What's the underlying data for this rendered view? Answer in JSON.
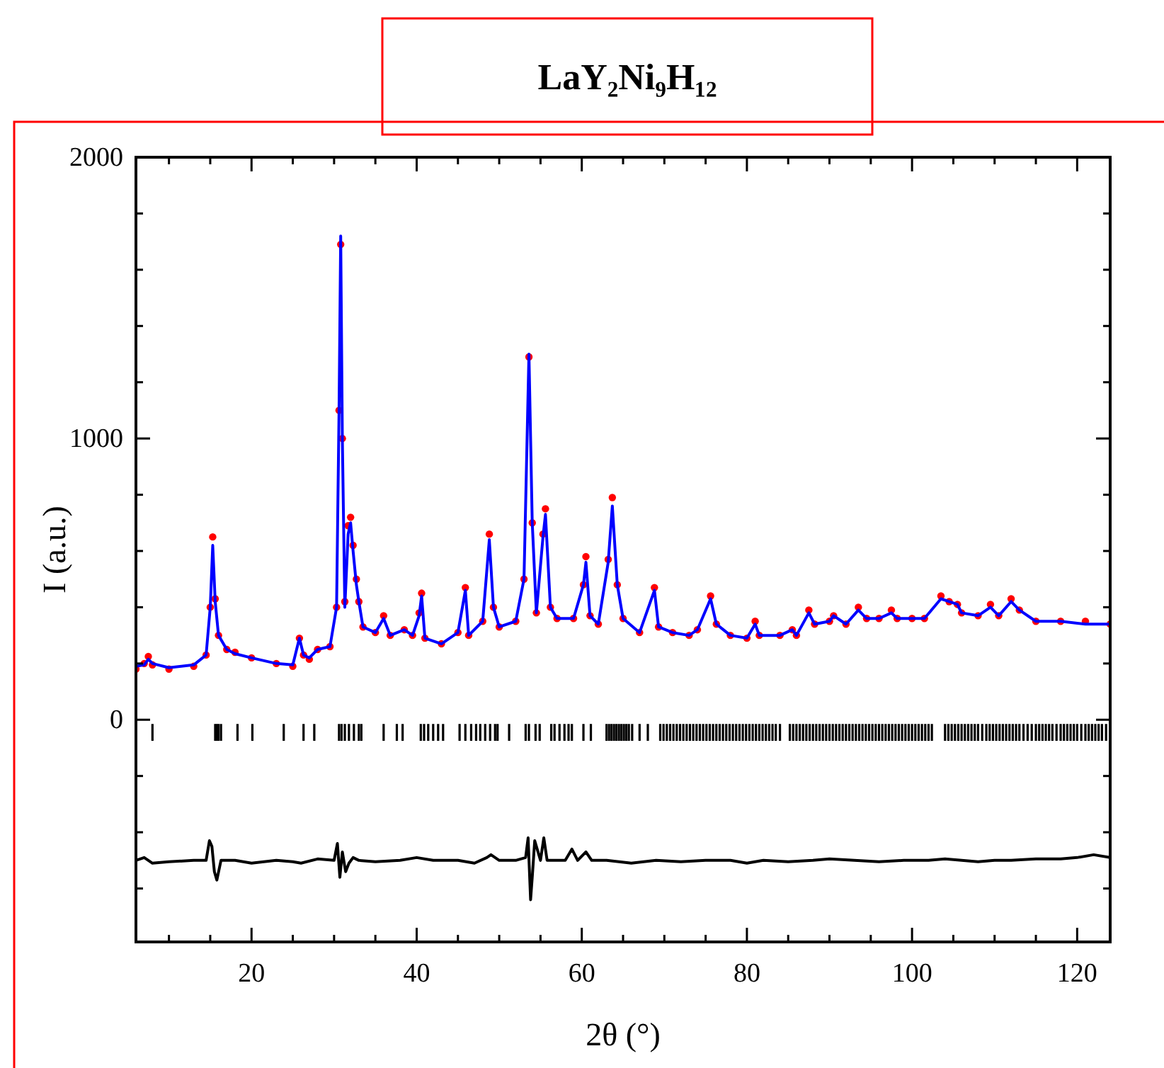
{
  "chart_data": {
    "type": "line",
    "title": "LaY₂Ni₉H₁₂",
    "xlabel": "2θ (°)",
    "ylabel": "I (a.u.)",
    "xlim": [
      6,
      124
    ],
    "ylim": [
      -790,
      2000
    ],
    "xticks": [
      {
        "value": 10,
        "label": null
      },
      {
        "value": 15,
        "label": null
      },
      20,
      {
        "value": 25,
        "label": null
      },
      {
        "value": 30,
        "label": null
      },
      {
        "value": 35,
        "label": null
      },
      40,
      {
        "value": 45,
        "label": null
      },
      {
        "value": 50,
        "label": null
      },
      {
        "value": 55,
        "label": null
      },
      60,
      {
        "value": 65,
        "label": null
      },
      {
        "value": 70,
        "label": null
      },
      {
        "value": 75,
        "label": null
      },
      80,
      {
        "value": 85,
        "label": null
      },
      {
        "value": 90,
        "label": null
      },
      {
        "value": 95,
        "label": null
      },
      100,
      {
        "value": 105,
        "label": null
      },
      {
        "value": 110,
        "label": null
      },
      {
        "value": 115,
        "label": null
      },
      120
    ],
    "yticks": [
      {
        "value": -600,
        "label": null
      },
      {
        "value": -400,
        "label": null
      },
      {
        "value": -200,
        "label": null
      },
      0,
      {
        "value": 200,
        "label": null
      },
      {
        "value": 400,
        "label": null
      },
      {
        "value": 600,
        "label": null
      },
      {
        "value": 800,
        "label": null
      },
      1000,
      {
        "value": 1200,
        "label": null
      },
      {
        "value": 1400,
        "label": null
      },
      {
        "value": 1600,
        "label": null
      },
      {
        "value": 1800,
        "label": null
      },
      2000
    ],
    "grid": false,
    "series": [
      {
        "type": "scatter",
        "marker": "circle",
        "color": "#ff0000",
        "x": [
          6,
          7,
          7.5,
          8,
          10,
          13,
          14.5,
          15,
          15.3,
          15.6,
          16,
          17,
          18,
          20,
          23,
          25,
          25.8,
          26.3,
          27,
          28,
          29.5,
          30.3,
          30.6,
          30.8,
          31,
          31.3,
          31.7,
          32,
          32.3,
          32.7,
          33,
          33.5,
          35,
          36,
          36.8,
          38.5,
          39.5,
          40.3,
          40.6,
          41,
          43,
          45,
          45.9,
          46.3,
          48,
          48.8,
          49.3,
          50,
          52,
          53,
          53.6,
          54,
          54.5,
          55.3,
          55.6,
          56.2,
          57,
          59,
          60.2,
          60.5,
          61,
          62,
          63.2,
          63.7,
          64.3,
          65,
          67,
          68.8,
          69.3,
          71,
          73,
          74,
          75.6,
          76.3,
          78,
          80,
          81,
          81.5,
          84,
          85.5,
          86,
          87.5,
          88.2,
          90,
          90.5,
          92,
          93.5,
          94.5,
          96,
          97.5,
          98.2,
          100,
          101.5,
          103.5,
          104.5,
          105.5,
          106,
          108,
          109.5,
          110.5,
          112,
          113,
          115,
          118,
          121,
          124
        ],
        "values": [
          180,
          200,
          225,
          195,
          180,
          190,
          230,
          400,
          650,
          430,
          300,
          250,
          240,
          220,
          200,
          190,
          290,
          230,
          215,
          250,
          260,
          400,
          1100,
          1690,
          1000,
          420,
          690,
          720,
          620,
          500,
          420,
          330,
          310,
          370,
          300,
          320,
          300,
          380,
          450,
          290,
          270,
          310,
          470,
          300,
          350,
          660,
          400,
          330,
          350,
          500,
          1290,
          700,
          380,
          660,
          750,
          400,
          360,
          360,
          480,
          580,
          370,
          340,
          570,
          790,
          480,
          360,
          310,
          470,
          330,
          310,
          300,
          320,
          440,
          340,
          300,
          290,
          350,
          300,
          300,
          320,
          300,
          390,
          340,
          350,
          370,
          340,
          400,
          360,
          360,
          390,
          360,
          360,
          360,
          440,
          420,
          410,
          380,
          370,
          410,
          370,
          430,
          390,
          350,
          350,
          350,
          340
        ]
      },
      {
        "marker": "none",
        "color": "#0000ff",
        "x": [
          6,
          7,
          7.5,
          8,
          10,
          13,
          14.5,
          15,
          15.3,
          15.6,
          16,
          17,
          18,
          20,
          23,
          25,
          25.8,
          26.3,
          27,
          28,
          29.5,
          30.3,
          30.6,
          30.8,
          31,
          31.3,
          31.7,
          32,
          32.3,
          32.7,
          33,
          33.5,
          35,
          36,
          36.8,
          38.5,
          39.5,
          40.3,
          40.6,
          41,
          43,
          45,
          45.9,
          46.3,
          48,
          48.8,
          49.3,
          50,
          52,
          53,
          53.6,
          54,
          54.5,
          55.3,
          55.6,
          56.2,
          57,
          59,
          60.2,
          60.5,
          61,
          62,
          63.2,
          63.7,
          64.3,
          65,
          67,
          68.8,
          69.3,
          71,
          73,
          74,
          75.6,
          76.3,
          78,
          80,
          81,
          81.5,
          84,
          85.5,
          86,
          87.5,
          88.2,
          90,
          90.5,
          92,
          93.5,
          94.5,
          96,
          97.5,
          98.2,
          100,
          101.5,
          103.5,
          104.5,
          105.5,
          106,
          108,
          109.5,
          110.5,
          112,
          113,
          115,
          118,
          121,
          124
        ],
        "values": [
          190,
          195,
          215,
          200,
          185,
          195,
          230,
          400,
          620,
          420,
          300,
          250,
          235,
          220,
          200,
          195,
          290,
          230,
          220,
          250,
          260,
          400,
          1100,
          1720,
          1000,
          400,
          660,
          700,
          600,
          480,
          420,
          330,
          310,
          360,
          300,
          320,
          300,
          370,
          440,
          290,
          270,
          310,
          460,
          300,
          350,
          640,
          400,
          330,
          350,
          500,
          1300,
          700,
          380,
          650,
          730,
          400,
          360,
          360,
          480,
          560,
          370,
          340,
          560,
          760,
          480,
          360,
          310,
          460,
          330,
          310,
          300,
          320,
          430,
          340,
          300,
          290,
          340,
          300,
          300,
          320,
          300,
          380,
          340,
          350,
          370,
          340,
          390,
          360,
          360,
          380,
          360,
          360,
          360,
          430,
          420,
          410,
          380,
          370,
          400,
          370,
          420,
          390,
          350,
          350,
          340,
          340
        ]
      },
      {
        "type": "bar",
        "color": "#000000",
        "base": [
          -75,
          -75,
          -75,
          -75,
          -75,
          -75,
          -75,
          -75,
          -75,
          -75,
          -75,
          -75,
          -75,
          -75,
          -75,
          -75,
          -75,
          -75,
          -75,
          -75,
          -75,
          -75,
          -75,
          -75,
          -75,
          -75,
          -75,
          -75,
          -75,
          -75,
          -75,
          -75,
          -75,
          -75,
          -75,
          -75,
          -75,
          -75,
          -75,
          -75,
          -75,
          -75,
          -75,
          -75,
          -75,
          -75,
          -75,
          -75,
          -75,
          -75,
          -75,
          -75,
          -75,
          -75,
          -75,
          -75,
          -75,
          -75,
          -75,
          -75,
          -75,
          -75,
          -75,
          -75,
          -75,
          -75,
          -75,
          -75,
          -75,
          -75,
          -75,
          -75,
          -75,
          -75,
          -75,
          -75,
          -75,
          -75,
          -75,
          -75,
          -75,
          -75,
          -75,
          -75,
          -75,
          -75,
          -75,
          -75,
          -75,
          -75,
          -75,
          -75,
          -75,
          -75,
          -75,
          -75,
          -75,
          -75,
          -75,
          -75,
          -75,
          -75,
          -75,
          -75,
          -75,
          -75,
          -75,
          -75,
          -75,
          -75,
          -75,
          -75,
          -75,
          -75,
          -75,
          -75,
          -75,
          -75,
          -75,
          -75,
          -75,
          -75,
          -75,
          -75,
          -75,
          -75,
          -75,
          -75,
          -75,
          -75,
          -75,
          -75,
          -75,
          -75,
          -75,
          -75,
          -75,
          -75,
          -75,
          -75,
          -75,
          -75,
          -75,
          -75,
          -75,
          -75,
          -75,
          -75,
          -75,
          -75,
          -75,
          -75,
          -75,
          -75,
          -75,
          -75,
          -75,
          -75,
          -75,
          -75,
          -75,
          -75,
          -75,
          -75,
          -75,
          -75,
          -75,
          -75,
          -75,
          -75,
          -75,
          -75,
          -75,
          -75,
          -75,
          -75,
          -75,
          -75,
          -75,
          -75,
          -75,
          -75,
          -75,
          -75,
          -75,
          -75,
          -75,
          -75,
          -75
        ],
        "x": [
          8,
          15.6,
          15.8,
          16,
          16.3,
          18.3,
          20.1,
          23.9,
          26.3,
          27.6,
          30.6,
          30.9,
          31.3,
          31.8,
          32.4,
          33,
          33.3,
          36,
          37.6,
          38.3,
          40.5,
          40.9,
          41.4,
          42,
          42.6,
          43.2,
          45.2,
          45.9,
          46.6,
          47.2,
          47.7,
          48.3,
          48.9,
          49.5,
          49.8,
          51.2,
          53.2,
          53.6,
          54.4,
          54.9,
          56.3,
          56.7,
          57.3,
          57.9,
          58.4,
          58.8,
          60.2,
          61.1,
          63,
          63.3,
          63.6,
          63.9,
          64.2,
          64.5,
          64.8,
          65.1,
          65.4,
          65.7,
          66.1,
          67,
          68,
          69.5,
          69.9,
          70.3,
          70.7,
          71.1,
          71.5,
          71.9,
          72.3,
          72.7,
          73.1,
          73.5,
          73.9,
          74.3,
          74.7,
          75.1,
          75.5,
          75.9,
          76.3,
          76.7,
          77.1,
          77.5,
          77.9,
          78.3,
          78.7,
          79.1,
          79.5,
          79.9,
          80.3,
          80.7,
          81.1,
          81.5,
          81.9,
          82.3,
          82.7,
          83.1,
          83.5,
          84,
          85.2,
          85.6,
          86,
          86.4,
          86.8,
          87.2,
          87.6,
          88,
          88.4,
          88.8,
          89.2,
          89.6,
          90,
          90.4,
          90.8,
          91.2,
          91.6,
          92,
          92.4,
          92.8,
          93.2,
          93.6,
          94,
          94.4,
          94.8,
          95.2,
          95.6,
          96,
          96.4,
          96.8,
          97.2,
          97.6,
          98,
          98.4,
          98.8,
          99.2,
          99.6,
          100,
          100.4,
          100.8,
          101.2,
          101.6,
          102,
          102.4,
          104,
          104.4,
          104.8,
          105.2,
          105.6,
          106,
          106.4,
          106.8,
          107.2,
          107.6,
          108,
          108.5,
          109,
          109.4,
          109.8,
          110.2,
          110.6,
          111,
          111.4,
          111.8,
          112.2,
          112.6,
          113,
          113.5,
          114,
          114.5,
          115,
          115.4,
          115.8,
          116.2,
          116.6,
          117,
          117.5,
          118,
          118.4,
          118.8,
          119.2,
          119.6,
          120,
          120.5,
          121,
          121.4,
          121.8,
          122.2,
          122.6,
          123,
          123.5
        ],
        "values": [
          60,
          60,
          60,
          60,
          60,
          60,
          60,
          60,
          60,
          60,
          60,
          60,
          60,
          60,
          60,
          60,
          60,
          60,
          60,
          60,
          60,
          60,
          60,
          60,
          60,
          60,
          60,
          60,
          60,
          60,
          60,
          60,
          60,
          60,
          60,
          60,
          60,
          60,
          60,
          60,
          60,
          60,
          60,
          60,
          60,
          60,
          60,
          60,
          60,
          60,
          60,
          60,
          60,
          60,
          60,
          60,
          60,
          60,
          60,
          60,
          60,
          60,
          60,
          60,
          60,
          60,
          60,
          60,
          60,
          60,
          60,
          60,
          60,
          60,
          60,
          60,
          60,
          60,
          60,
          60,
          60,
          60,
          60,
          60,
          60,
          60,
          60,
          60,
          60,
          60,
          60,
          60,
          60,
          60,
          60,
          60,
          60,
          60,
          60,
          60,
          60,
          60,
          60,
          60,
          60,
          60,
          60,
          60,
          60,
          60,
          60,
          60,
          60,
          60,
          60,
          60,
          60,
          60,
          60,
          60,
          60,
          60,
          60,
          60,
          60,
          60,
          60,
          60,
          60,
          60,
          60,
          60,
          60,
          60,
          60,
          60,
          60,
          60,
          60,
          60,
          60,
          60,
          60,
          60,
          60,
          60,
          60,
          60,
          60,
          60,
          60,
          60,
          60,
          60,
          60,
          60,
          60,
          60,
          60,
          60,
          60,
          60,
          60,
          60,
          60,
          60,
          60,
          60,
          60,
          60,
          60,
          60,
          60,
          60,
          60,
          60,
          60,
          60,
          60,
          60,
          60,
          60,
          60,
          60,
          60,
          60,
          60,
          60,
          60
        ]
      },
      {
        "marker": "none",
        "color": "#000000",
        "x": [
          6,
          7,
          8,
          10,
          13,
          14.5,
          14.9,
          15.2,
          15.5,
          15.8,
          16.3,
          18,
          20,
          23,
          25,
          26,
          28,
          30,
          30.4,
          30.7,
          31,
          31.4,
          31.8,
          32.3,
          33,
          35,
          38,
          40,
          42,
          45,
          47,
          48.5,
          49,
          50,
          52,
          53.2,
          53.5,
          53.8,
          54,
          54.3,
          55,
          55.4,
          55.8,
          56.3,
          58,
          58.8,
          59.5,
          60.5,
          61.2,
          63,
          66,
          69,
          72,
          75,
          78,
          80,
          82,
          85,
          88,
          90,
          93,
          96,
          99,
          102,
          104,
          106,
          108,
          110,
          112,
          115,
          118,
          120,
          122,
          124
        ],
        "values": [
          -500,
          -490,
          -510,
          -505,
          -500,
          -500,
          -430,
          -450,
          -540,
          -570,
          -500,
          -500,
          -510,
          -500,
          -505,
          -510,
          -495,
          -500,
          -440,
          -560,
          -470,
          -540,
          -510,
          -490,
          -500,
          -505,
          -500,
          -490,
          -500,
          -500,
          -510,
          -490,
          -480,
          -500,
          -500,
          -490,
          -420,
          -640,
          -560,
          -430,
          -500,
          -420,
          -500,
          -500,
          -500,
          -460,
          -500,
          -470,
          -500,
          -500,
          -510,
          -500,
          -505,
          -500,
          -500,
          -510,
          -500,
          -505,
          -500,
          -495,
          -500,
          -505,
          -500,
          -500,
          -495,
          -500,
          -505,
          -500,
          -500,
          -495,
          -495,
          -490,
          -480,
          -490
        ]
      }
    ]
  }
}
